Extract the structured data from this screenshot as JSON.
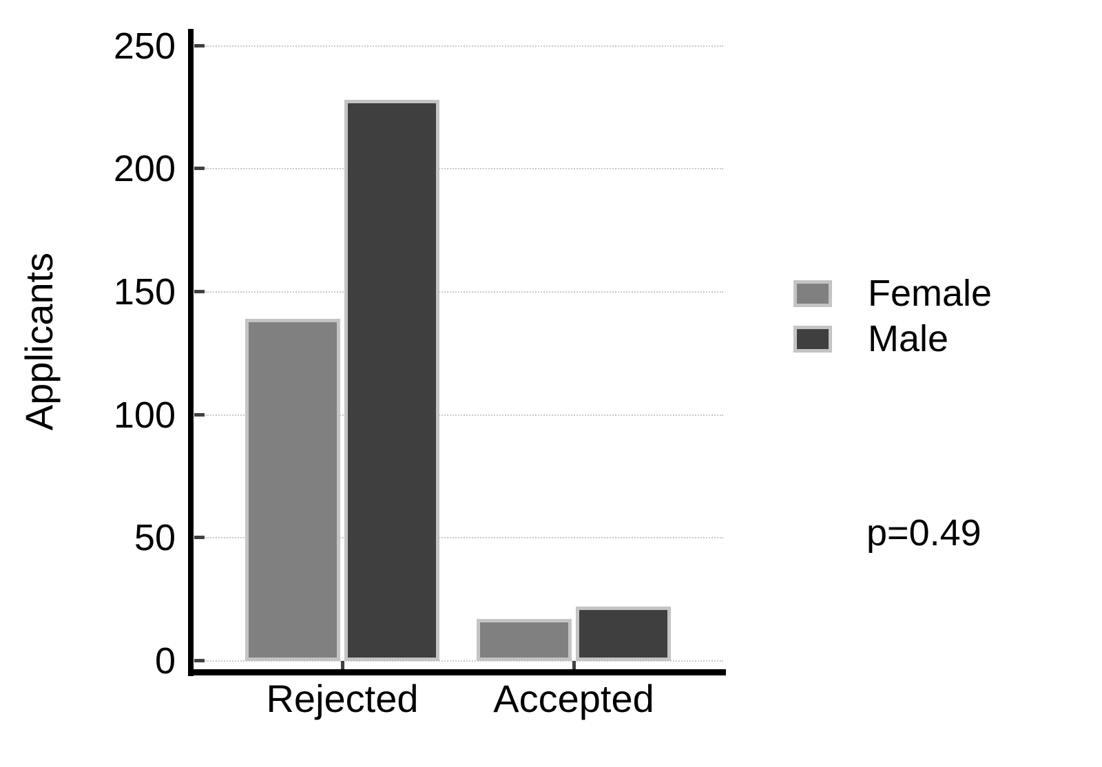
{
  "chart_data": {
    "type": "bar",
    "title": "",
    "xlabel": "",
    "ylabel": "Applicants",
    "categories": [
      "Rejected",
      "Accepted"
    ],
    "series": [
      {
        "name": "Female",
        "color": "#808080",
        "values": [
          139,
          17
        ]
      },
      {
        "name": "Male",
        "color": "#3f3f3f",
        "values": [
          228,
          22
        ]
      }
    ],
    "ylim": [
      0,
      250
    ],
    "yticks": [
      0,
      50,
      100,
      150,
      200,
      250
    ],
    "grid": "horizontal-dotted",
    "legend_position": "right",
    "annotation": "p=0.49",
    "colors": {
      "bar_border": "#c4c4c4",
      "gridline": "#c8c8c8",
      "tick": "#404040",
      "axis": "#000000",
      "text": "#000000",
      "background": "#ffffff"
    }
  }
}
